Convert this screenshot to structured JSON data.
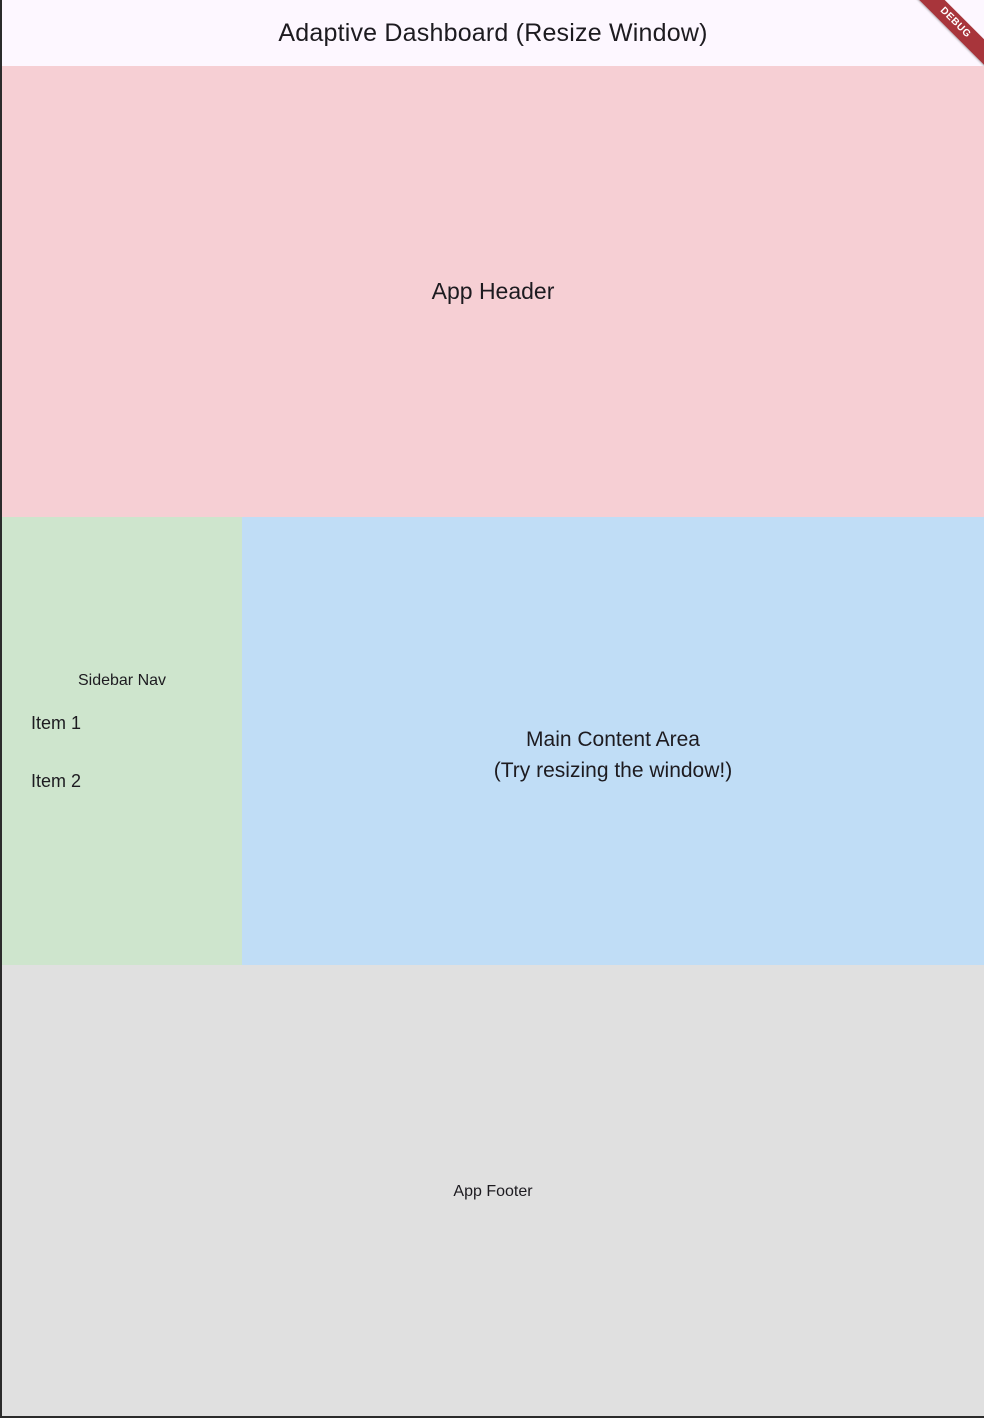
{
  "appbar": {
    "title": "Adaptive Dashboard (Resize Window)"
  },
  "debug_banner": {
    "label": "DEBUG"
  },
  "header": {
    "label": "App Header"
  },
  "sidebar": {
    "title": "Sidebar Nav",
    "items": [
      {
        "label": "Item 1"
      },
      {
        "label": "Item 2"
      }
    ]
  },
  "main": {
    "line1": "Main Content Area",
    "line2": "(Try resizing the window!)"
  },
  "footer": {
    "label": "App Footer"
  },
  "colors": {
    "header_bg": "#f6cfd4",
    "sidebar_bg": "#cee5cd",
    "main_bg": "#c0ddf6",
    "footer_bg": "#e0e0e0",
    "appbar_bg": "#fdf7ff",
    "debug_ribbon": "#a8353b"
  }
}
